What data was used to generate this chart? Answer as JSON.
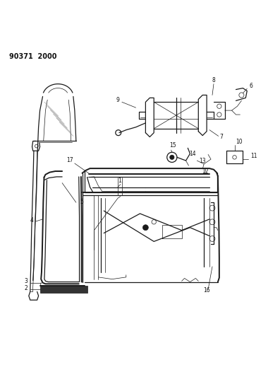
{
  "title": "90371  2000",
  "bg_color": "#ffffff",
  "line_color": "#1a1a1a",
  "label_color": "#111111"
}
